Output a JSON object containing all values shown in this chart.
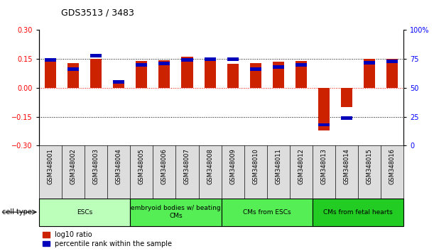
{
  "title": "GDS3513 / 3483",
  "samples": [
    "GSM348001",
    "GSM348002",
    "GSM348003",
    "GSM348004",
    "GSM348005",
    "GSM348006",
    "GSM348007",
    "GSM348008",
    "GSM348009",
    "GSM348010",
    "GSM348011",
    "GSM348012",
    "GSM348013",
    "GSM348014",
    "GSM348015",
    "GSM348016"
  ],
  "log10_ratio": [
    0.142,
    0.128,
    0.152,
    0.028,
    0.138,
    0.142,
    0.16,
    0.154,
    0.124,
    0.128,
    0.135,
    0.14,
    -0.22,
    -0.1,
    0.15,
    0.15
  ],
  "percentile_rank": [
    74,
    66,
    78,
    55,
    70,
    71,
    74,
    75,
    75,
    66,
    68,
    70,
    18,
    24,
    72,
    73
  ],
  "ylim_left": [
    -0.3,
    0.3
  ],
  "ylim_right": [
    0,
    100
  ],
  "yticks_left": [
    -0.3,
    -0.15,
    0,
    0.15,
    0.3
  ],
  "yticks_right": [
    0,
    25,
    50,
    75,
    100
  ],
  "ytick_labels_right": [
    "0",
    "25",
    "50",
    "75",
    "100%"
  ],
  "hlines_black": [
    -0.15,
    0.15
  ],
  "hline_red": 0.0,
  "bar_color_red": "#cc2200",
  "bar_color_blue": "#0000bb",
  "cell_types": [
    {
      "label": "ESCs",
      "start": 0,
      "end": 3,
      "color": "#bbffbb"
    },
    {
      "label": "embryoid bodies w/ beating\nCMs",
      "start": 4,
      "end": 7,
      "color": "#55ee55"
    },
    {
      "label": "CMs from ESCs",
      "start": 8,
      "end": 11,
      "color": "#55ee55"
    },
    {
      "label": "CMs from fetal hearts",
      "start": 12,
      "end": 15,
      "color": "#22cc22"
    }
  ],
  "xlabel_cell_type": "cell type",
  "legend_red_label": "log10 ratio",
  "legend_blue_label": "percentile rank within the sample",
  "bar_width": 0.5,
  "blue_bar_height": 0.018,
  "background_color": "#ffffff",
  "tick_fontsize": 7,
  "sample_fontsize": 6,
  "title_fontsize": 9
}
